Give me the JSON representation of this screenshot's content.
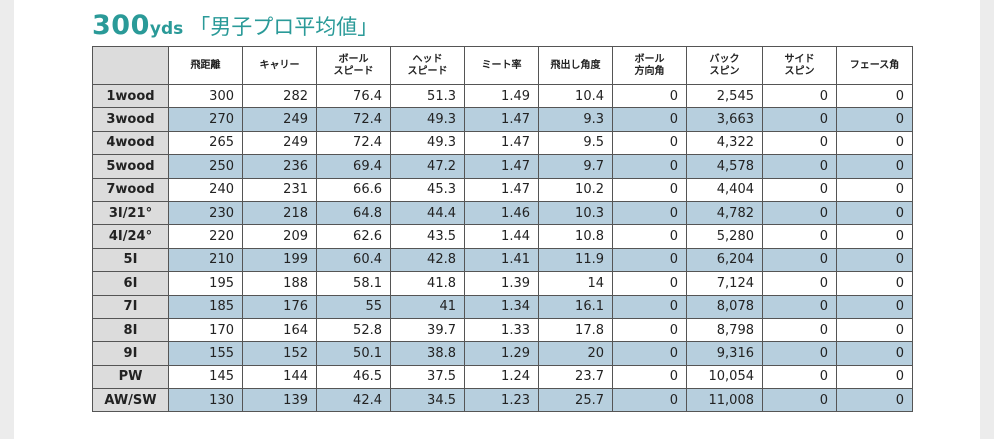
{
  "title": {
    "number": "300",
    "unit": "yds",
    "label": "「男子プロ平均値」"
  },
  "colors": {
    "title": "#2a9a98",
    "row_shade": "#b7cfde",
    "first_col": "#dcdcdc"
  },
  "table": {
    "headers": [
      [
        "飛距離"
      ],
      [
        "キャリー"
      ],
      [
        "ボール",
        "スピード"
      ],
      [
        "ヘッド",
        "スピード"
      ],
      [
        "ミート率"
      ],
      [
        "飛出し角度"
      ],
      [
        "ボール",
        "方向角"
      ],
      [
        "バック",
        "スピン"
      ],
      [
        "サイド",
        "スピン"
      ],
      [
        "フェース角"
      ]
    ],
    "rows": [
      [
        "1wood",
        "300",
        "282",
        "76.4",
        "51.3",
        "1.49",
        "10.4",
        "0",
        "2,545",
        "0",
        "0"
      ],
      [
        "3wood",
        "270",
        "249",
        "72.4",
        "49.3",
        "1.47",
        "9.3",
        "0",
        "3,663",
        "0",
        "0"
      ],
      [
        "4wood",
        "265",
        "249",
        "72.4",
        "49.3",
        "1.47",
        "9.5",
        "0",
        "4,322",
        "0",
        "0"
      ],
      [
        "5wood",
        "250",
        "236",
        "69.4",
        "47.2",
        "1.47",
        "9.7",
        "0",
        "4,578",
        "0",
        "0"
      ],
      [
        "7wood",
        "240",
        "231",
        "66.6",
        "45.3",
        "1.47",
        "10.2",
        "0",
        "4,404",
        "0",
        "0"
      ],
      [
        "3I/21°",
        "230",
        "218",
        "64.8",
        "44.4",
        "1.46",
        "10.3",
        "0",
        "4,782",
        "0",
        "0"
      ],
      [
        "4I/24°",
        "220",
        "209",
        "62.6",
        "43.5",
        "1.44",
        "10.8",
        "0",
        "5,280",
        "0",
        "0"
      ],
      [
        "5I",
        "210",
        "199",
        "60.4",
        "42.8",
        "1.41",
        "11.9",
        "0",
        "6,204",
        "0",
        "0"
      ],
      [
        "6I",
        "195",
        "188",
        "58.1",
        "41.8",
        "1.39",
        "14",
        "0",
        "7,124",
        "0",
        "0"
      ],
      [
        "7I",
        "185",
        "176",
        "55",
        "41",
        "1.34",
        "16.1",
        "0",
        "8,078",
        "0",
        "0"
      ],
      [
        "8I",
        "170",
        "164",
        "52.8",
        "39.7",
        "1.33",
        "17.8",
        "0",
        "8,798",
        "0",
        "0"
      ],
      [
        "9I",
        "155",
        "152",
        "50.1",
        "38.8",
        "1.29",
        "20",
        "0",
        "9,316",
        "0",
        "0"
      ],
      [
        "PW",
        "145",
        "144",
        "46.5",
        "37.5",
        "1.24",
        "23.7",
        "0",
        "10,054",
        "0",
        "0"
      ],
      [
        "AW/SW",
        "130",
        "139",
        "42.4",
        "34.5",
        "1.23",
        "25.7",
        "0",
        "11,008",
        "0",
        "0"
      ]
    ]
  }
}
